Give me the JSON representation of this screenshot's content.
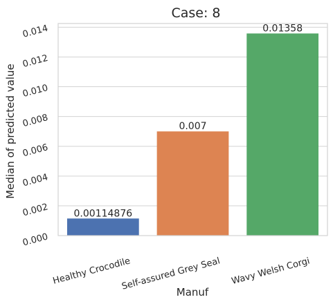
{
  "chart_data": {
    "type": "bar",
    "title": "Case: 8",
    "xlabel": "Manuf",
    "ylabel": "Median of predicted value",
    "categories": [
      "Healthy Crocodile",
      "Self-assured Grey Seal",
      "Wavy Welsh Corgi"
    ],
    "values": [
      0.00114876,
      0.007,
      0.01358
    ],
    "data_labels": [
      "0.00114876",
      "0.007",
      "0.01358"
    ],
    "colors": [
      "#4c72b0",
      "#dd8452",
      "#55a868"
    ],
    "ylim": [
      0,
      0.01425
    ],
    "yticks": [
      0,
      0.002,
      0.004,
      0.006,
      0.008,
      0.01,
      0.012,
      0.014
    ],
    "ytick_labels": [
      "0.000",
      "0.002",
      "0.004",
      "0.006",
      "0.008",
      "0.010",
      "0.012",
      "0.014"
    ],
    "grid": "horizontal",
    "legend": "none"
  }
}
